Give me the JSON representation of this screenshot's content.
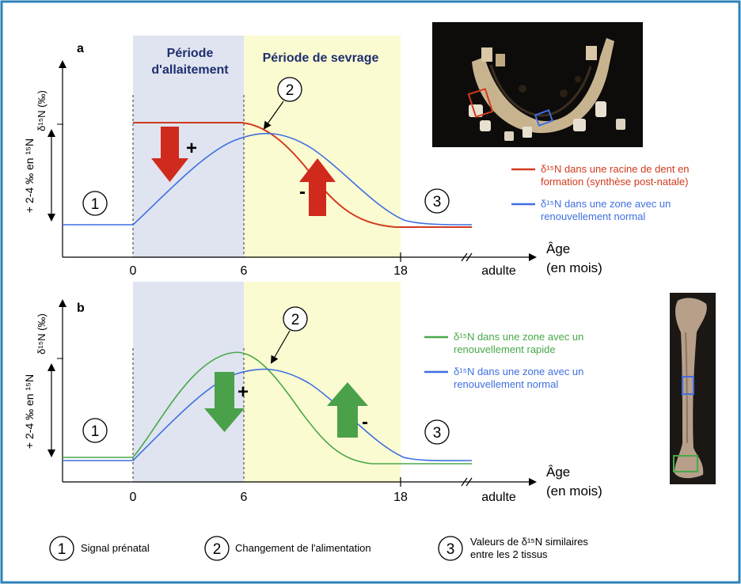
{
  "colors": {
    "border": "#2f83b8",
    "blue_band": "#dfe4f0",
    "yellow_band": "#fbfbd2",
    "red": "#d23a1d",
    "blue": "#3f6fe0",
    "green": "#48a848",
    "arrow_red": "#cf2a1c",
    "arrow_green": "#4aa14a"
  },
  "panel_a": {
    "letter": "a",
    "period_nursing_line1": "Période",
    "period_nursing_line2": "d'allaitement",
    "period_weaning": "Période de sevrage",
    "y_axis_label": "δ¹⁵N (‰)",
    "y_range_label": "+ 2-4 ‰ en ¹⁵N",
    "x_axis_label_line1": "Âge",
    "x_axis_label_line2": "(en mois)",
    "ticks": [
      "0",
      "6",
      "18",
      "adulte"
    ],
    "markers": [
      "1",
      "2",
      "3"
    ],
    "plus": "+",
    "minus": "-",
    "legend": [
      {
        "line1": "δ¹⁵N dans une racine de dent  en",
        "line2": "formation (synthèse post-natale)",
        "color": "#d23a1d"
      },
      {
        "line1": "δ¹⁵N dans une zone avec un",
        "line2": "renouvellement normal",
        "color": "#3f6fe0"
      }
    ],
    "photo": "mandible-photo"
  },
  "panel_b": {
    "letter": "b",
    "y_axis_label": "δ¹⁵N (‰)",
    "y_range_label": "+ 2-4 ‰ en ¹⁵N",
    "x_axis_label_line1": "Âge",
    "x_axis_label_line2": "(en mois)",
    "ticks": [
      "0",
      "6",
      "18",
      "adulte"
    ],
    "markers": [
      "1",
      "2",
      "3"
    ],
    "plus": "+",
    "minus": "-",
    "legend": [
      {
        "line1": "δ¹⁵N dans une zone avec un",
        "line2": "renouvellement rapide",
        "color": "#48a848"
      },
      {
        "line1": "δ¹⁵N dans une zone avec un",
        "line2": "renouvellement normal",
        "color": "#3f6fe0"
      }
    ],
    "photo": "long-bone-photo"
  },
  "footer": [
    {
      "num": "1",
      "line1": "Signal prénatal",
      "line2": ""
    },
    {
      "num": "2",
      "line1": "Changement de l'alimentation",
      "line2": ""
    },
    {
      "num": "3",
      "line1": "Valeurs de δ¹⁵N similaires",
      "line2": "entre les 2 tissus"
    }
  ]
}
